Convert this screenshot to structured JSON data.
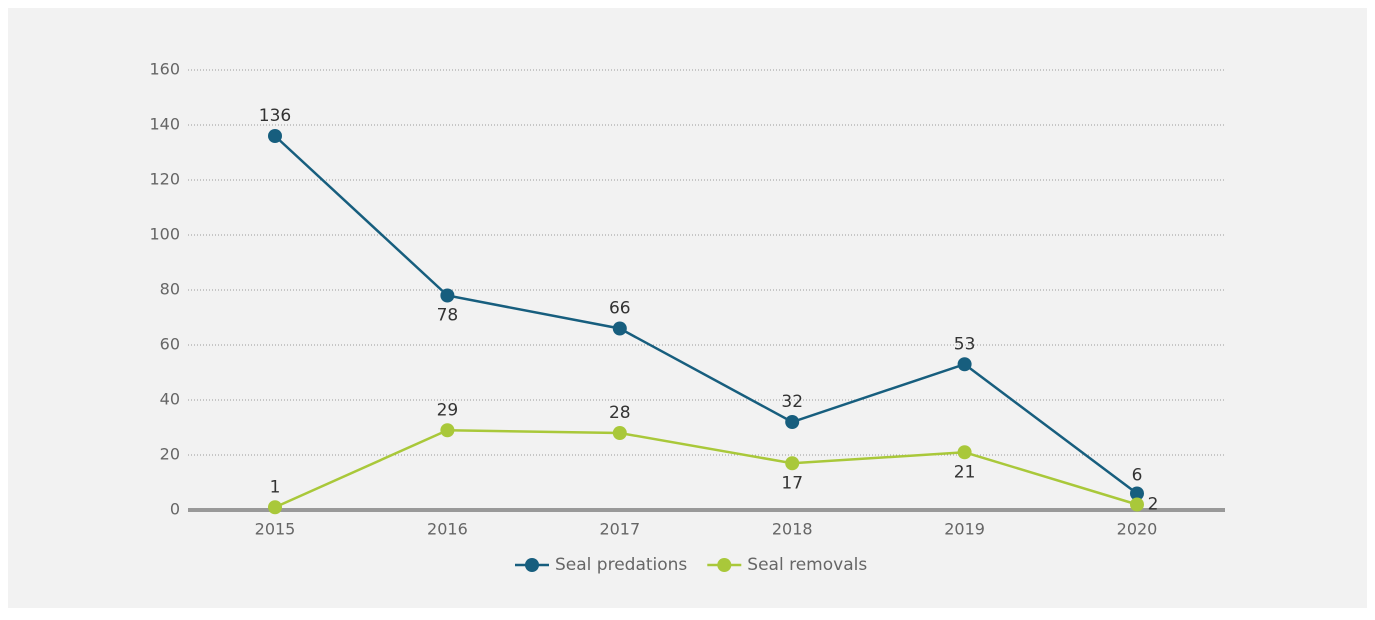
{
  "chart_data": {
    "type": "line",
    "categories": [
      "2015",
      "2016",
      "2017",
      "2018",
      "2019",
      "2020"
    ],
    "series": [
      {
        "name": "Seal predations",
        "color": "#175e7e",
        "values": [
          136,
          78,
          66,
          32,
          53,
          6
        ]
      },
      {
        "name": "Seal removals",
        "color": "#a9c83a",
        "values": [
          1,
          29,
          28,
          17,
          21,
          2
        ]
      }
    ],
    "ylim": [
      0,
      160
    ],
    "yticks": [
      0,
      20,
      40,
      60,
      80,
      100,
      120,
      140,
      160
    ],
    "grid": true,
    "legend": "bottom"
  }
}
